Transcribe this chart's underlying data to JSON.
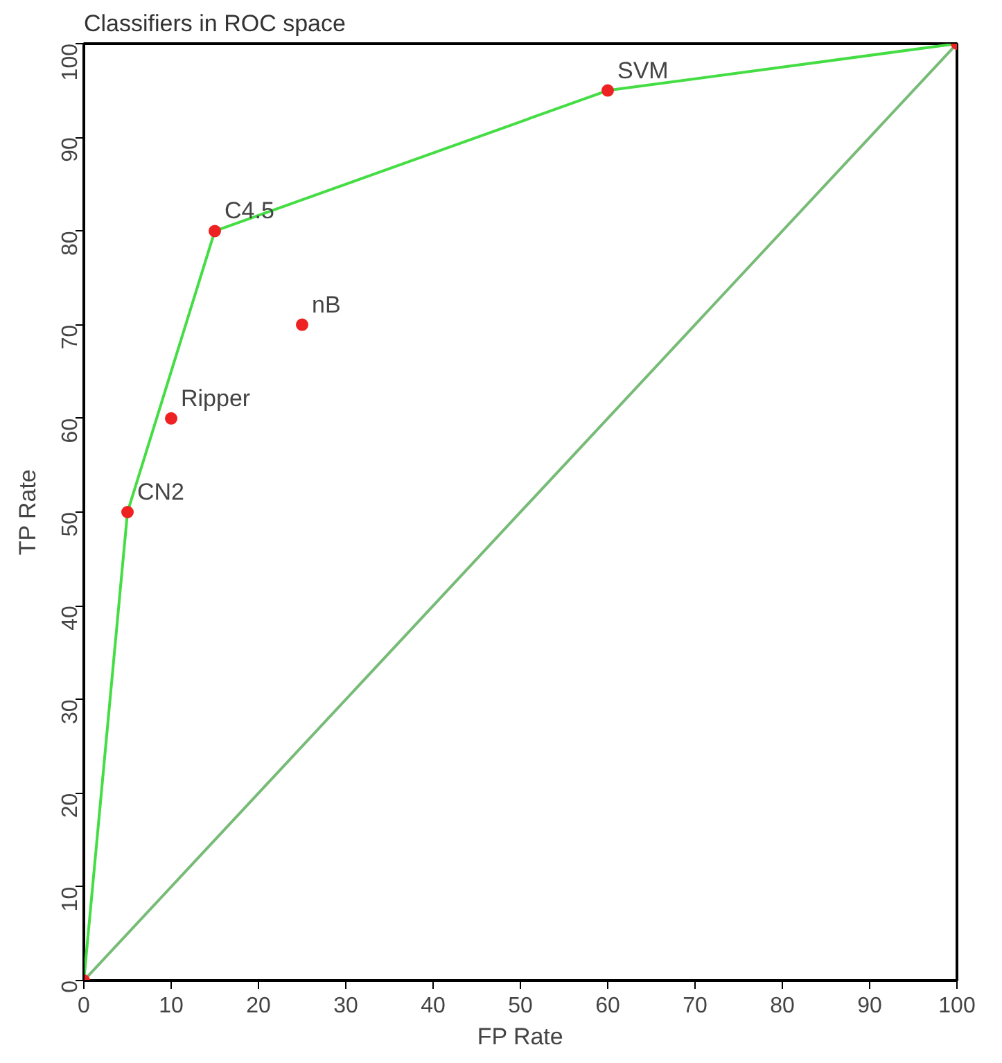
{
  "chart_data": {
    "type": "scatter",
    "title": "Classifiers in ROC space",
    "xlabel": "FP Rate",
    "ylabel": "TP Rate",
    "xlim": [
      0,
      100
    ],
    "ylim": [
      0,
      100
    ],
    "xticks": [
      0,
      10,
      20,
      30,
      40,
      50,
      60,
      70,
      80,
      90,
      100
    ],
    "yticks": [
      0,
      10,
      20,
      30,
      40,
      50,
      60,
      70,
      80,
      90,
      100
    ],
    "grid": false,
    "series": [
      {
        "type": "line",
        "marker": "none",
        "color": "#77bb77",
        "x": [
          0,
          100
        ],
        "values": [
          0,
          100
        ]
      },
      {
        "type": "line",
        "marker": "none",
        "color": "#44dd44",
        "x": [
          0,
          5,
          15,
          60,
          100
        ],
        "values": [
          0,
          50,
          80,
          95,
          100
        ]
      },
      {
        "marker": "circle",
        "color": "#ee2222",
        "x": [
          0,
          5,
          10,
          15,
          25,
          60,
          100
        ],
        "values": [
          0,
          50,
          60,
          80,
          70,
          95,
          100
        ]
      }
    ],
    "annotations": [
      {
        "text": "CN2",
        "x": 5,
        "y": 50
      },
      {
        "text": "Ripper",
        "x": 10,
        "y": 60
      },
      {
        "text": "C4.5",
        "x": 15,
        "y": 80
      },
      {
        "text": "nB",
        "x": 25,
        "y": 70
      },
      {
        "text": "SVM",
        "x": 60,
        "y": 95
      }
    ]
  }
}
